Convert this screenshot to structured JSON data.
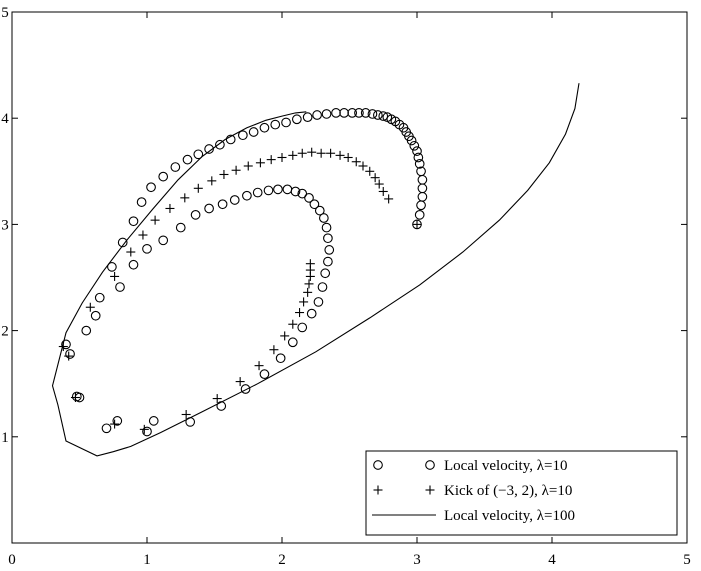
{
  "chart_data": {
    "type": "scatter",
    "title": "",
    "xlabel": "",
    "ylabel": "",
    "xlim": [
      0,
      5
    ],
    "ylim": [
      0,
      5
    ],
    "xticks": [
      "0",
      "1",
      "2",
      "3",
      "4",
      "5"
    ],
    "yticks": [
      "0",
      "1",
      "2",
      "3",
      "4",
      "5"
    ],
    "grid": false,
    "legend_position": "bottom-right",
    "series": [
      {
        "name": "Local velocity, λ=10",
        "marker": "circle",
        "style": "markers",
        "points": [
          [
            3.0,
            3.0
          ],
          [
            3.02,
            3.09
          ],
          [
            3.03,
            3.18
          ],
          [
            3.04,
            3.26
          ],
          [
            3.04,
            3.34
          ],
          [
            3.04,
            3.42
          ],
          [
            3.03,
            3.5
          ],
          [
            3.02,
            3.57
          ],
          [
            3.01,
            3.63
          ],
          [
            3.0,
            3.69
          ],
          [
            2.98,
            3.74
          ],
          [
            2.96,
            3.79
          ],
          [
            2.94,
            3.83
          ],
          [
            2.92,
            3.87
          ],
          [
            2.9,
            3.91
          ],
          [
            2.87,
            3.94
          ],
          [
            2.84,
            3.97
          ],
          [
            2.81,
            3.99
          ],
          [
            2.78,
            4.01
          ],
          [
            2.75,
            4.02
          ],
          [
            2.71,
            4.03
          ],
          [
            2.67,
            4.04
          ],
          [
            2.62,
            4.05
          ],
          [
            2.57,
            4.05
          ],
          [
            2.52,
            4.05
          ],
          [
            2.46,
            4.05
          ],
          [
            2.4,
            4.05
          ],
          [
            2.33,
            4.04
          ],
          [
            2.26,
            4.03
          ],
          [
            2.19,
            4.01
          ],
          [
            2.11,
            3.99
          ],
          [
            2.03,
            3.96
          ],
          [
            1.95,
            3.94
          ],
          [
            1.87,
            3.91
          ],
          [
            1.79,
            3.87
          ],
          [
            1.71,
            3.84
          ],
          [
            1.62,
            3.8
          ],
          [
            1.54,
            3.75
          ],
          [
            1.46,
            3.71
          ],
          [
            1.38,
            3.66
          ],
          [
            1.3,
            3.61
          ],
          [
            1.21,
            3.54
          ],
          [
            1.12,
            3.45
          ],
          [
            1.03,
            3.35
          ],
          [
            0.96,
            3.21
          ],
          [
            0.9,
            3.03
          ],
          [
            0.82,
            2.83
          ],
          [
            0.74,
            2.6
          ],
          [
            0.65,
            2.31
          ],
          [
            0.55,
            2.0
          ],
          [
            0.4,
            1.87
          ],
          [
            0.43,
            1.78
          ],
          [
            0.48,
            1.38
          ],
          [
            0.5,
            1.37
          ],
          [
            0.7,
            1.08
          ],
          [
            0.78,
            1.15
          ],
          [
            1.0,
            1.05
          ],
          [
            1.05,
            1.15
          ],
          [
            1.32,
            1.14
          ],
          [
            1.55,
            1.29
          ],
          [
            1.73,
            1.45
          ],
          [
            1.87,
            1.59
          ],
          [
            1.99,
            1.74
          ],
          [
            2.08,
            1.89
          ],
          [
            2.15,
            2.03
          ],
          [
            2.22,
            2.16
          ],
          [
            2.27,
            2.27
          ],
          [
            2.3,
            2.41
          ],
          [
            2.32,
            2.54
          ],
          [
            2.34,
            2.65
          ],
          [
            2.35,
            2.76
          ],
          [
            2.34,
            2.87
          ],
          [
            2.33,
            2.97
          ],
          [
            2.31,
            3.06
          ],
          [
            2.28,
            3.13
          ],
          [
            2.24,
            3.19
          ],
          [
            2.2,
            3.25
          ],
          [
            2.15,
            3.29
          ],
          [
            2.1,
            3.31
          ],
          [
            2.04,
            3.33
          ],
          [
            1.97,
            3.33
          ],
          [
            1.9,
            3.32
          ],
          [
            1.82,
            3.3
          ],
          [
            1.74,
            3.27
          ],
          [
            1.65,
            3.23
          ],
          [
            1.56,
            3.19
          ],
          [
            1.46,
            3.15
          ],
          [
            1.36,
            3.09
          ],
          [
            1.25,
            2.97
          ],
          [
            1.12,
            2.85
          ],
          [
            1.0,
            2.77
          ],
          [
            0.9,
            2.62
          ],
          [
            0.8,
            2.41
          ],
          [
            0.62,
            2.14
          ]
        ]
      },
      {
        "name": "Kick of (−3, 2), λ=10",
        "marker": "plus",
        "style": "markers",
        "points": [
          [
            3.0,
            3.0
          ],
          [
            2.79,
            3.24
          ],
          [
            2.75,
            3.31
          ],
          [
            2.72,
            3.38
          ],
          [
            2.69,
            3.44
          ],
          [
            2.65,
            3.5
          ],
          [
            2.6,
            3.55
          ],
          [
            2.55,
            3.59
          ],
          [
            2.49,
            3.63
          ],
          [
            2.43,
            3.65
          ],
          [
            2.36,
            3.67
          ],
          [
            2.29,
            3.67
          ],
          [
            2.22,
            3.68
          ],
          [
            2.15,
            3.67
          ],
          [
            2.08,
            3.65
          ],
          [
            2.0,
            3.63
          ],
          [
            1.92,
            3.61
          ],
          [
            1.84,
            3.58
          ],
          [
            1.75,
            3.55
          ],
          [
            1.66,
            3.51
          ],
          [
            1.57,
            3.47
          ],
          [
            1.48,
            3.41
          ],
          [
            1.38,
            3.34
          ],
          [
            1.28,
            3.25
          ],
          [
            1.17,
            3.15
          ],
          [
            1.06,
            3.04
          ],
          [
            0.97,
            2.9
          ],
          [
            0.88,
            2.74
          ],
          [
            0.76,
            2.51
          ],
          [
            0.58,
            2.22
          ],
          [
            0.38,
            1.85
          ],
          [
            0.42,
            1.76
          ],
          [
            0.47,
            1.37
          ],
          [
            0.76,
            1.12
          ],
          [
            0.98,
            1.07
          ],
          [
            1.29,
            1.21
          ],
          [
            1.52,
            1.36
          ],
          [
            1.69,
            1.52
          ],
          [
            1.83,
            1.67
          ],
          [
            1.94,
            1.82
          ],
          [
            2.02,
            1.95
          ],
          [
            2.08,
            2.06
          ],
          [
            2.13,
            2.17
          ],
          [
            2.16,
            2.27
          ],
          [
            2.19,
            2.36
          ],
          [
            2.2,
            2.44
          ],
          [
            2.21,
            2.51
          ],
          [
            2.21,
            2.57
          ],
          [
            2.21,
            2.63
          ]
        ]
      },
      {
        "name": "Local velocity, λ=100",
        "marker": "none",
        "style": "line",
        "points": [
          [
            4.2,
            4.33
          ],
          [
            4.17,
            4.09
          ],
          [
            4.1,
            3.85
          ],
          [
            3.98,
            3.58
          ],
          [
            3.82,
            3.32
          ],
          [
            3.61,
            3.04
          ],
          [
            3.34,
            2.74
          ],
          [
            3.02,
            2.43
          ],
          [
            2.65,
            2.12
          ],
          [
            2.25,
            1.8
          ],
          [
            1.82,
            1.5
          ],
          [
            1.4,
            1.23
          ],
          [
            1.1,
            1.04
          ],
          [
            0.88,
            0.91
          ],
          [
            0.75,
            0.86
          ],
          [
            0.63,
            0.82
          ],
          [
            0.4,
            0.96
          ],
          [
            0.34,
            1.3
          ],
          [
            0.3,
            1.48
          ],
          [
            0.4,
            1.98
          ],
          [
            0.52,
            2.26
          ],
          [
            0.67,
            2.55
          ],
          [
            0.85,
            2.85
          ],
          [
            1.04,
            3.14
          ],
          [
            1.23,
            3.42
          ],
          [
            1.41,
            3.64
          ],
          [
            1.58,
            3.8
          ],
          [
            1.74,
            3.91
          ],
          [
            1.88,
            3.98
          ],
          [
            2.0,
            4.02
          ],
          [
            2.1,
            4.05
          ],
          [
            2.18,
            4.06
          ]
        ]
      }
    ]
  }
}
